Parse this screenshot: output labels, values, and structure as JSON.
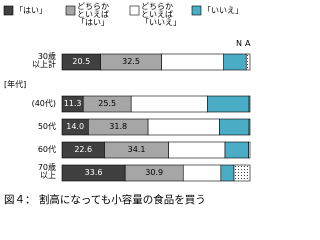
{
  "chart_data": {
    "type": "stacked-bar-horizontal",
    "caption": "図４： 割高になっても小容量の食品を買う",
    "group_label": "[年代]",
    "categories": [
      "30歳\n以上計",
      "(40代)",
      "50代",
      "60代",
      "70歳\n以上"
    ],
    "series": [
      {
        "name": "「はい」",
        "color": "#404040",
        "values": [
          20.5,
          11.3,
          14.0,
          22.6,
          33.6
        ],
        "value_labels": [
          "20.5",
          "11.3",
          "14.0",
          "22.6",
          "33.6"
        ],
        "label_color": "#ffffff"
      },
      {
        "name": "どちらか\nといえば\n「はい」",
        "color": "#a6a6a6",
        "values": [
          32.5,
          25.5,
          31.8,
          34.1,
          30.9
        ],
        "value_labels": [
          "32.5",
          "25.5",
          "31.8",
          "34.1",
          "30.9"
        ],
        "label_color": "#000000"
      },
      {
        "name": "どちらか\nといえば\n「いいえ」",
        "color": "#ffffff",
        "values": [
          33,
          40.5,
          38,
          30,
          20
        ]
      },
      {
        "name": "「いいえ」",
        "color": "#4bacc6",
        "values": [
          12,
          22.2,
          15.7,
          12.6,
          7
        ]
      },
      {
        "name": "NA",
        "color": "#ffffff",
        "pattern": "dots",
        "values": [
          2,
          0.5,
          0.5,
          0.7,
          8.5
        ]
      }
    ]
  }
}
